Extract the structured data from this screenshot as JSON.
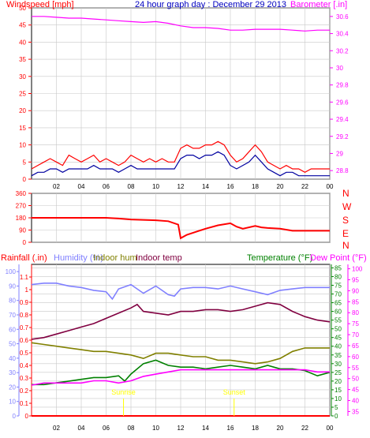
{
  "top_panel": {
    "title": "24 hour graph day : December 29 2013",
    "left_label": "Windspeed [mph]",
    "right_label": "Barometer [.in]"
  },
  "direction_panel": {
    "compass": [
      "N",
      "W",
      "S",
      "E",
      "N"
    ]
  },
  "bottom_panel": {
    "labels": {
      "rainfall": "Rainfall (.in)",
      "humidity": "Humidity (%)",
      "indoor_hum": "Indoor hum",
      "indoor_temp": "Indoor temp",
      "temperature": "Temperature (°F)",
      "dew_point": "Dew Point (°F)"
    },
    "annotations": [
      {
        "text": "Sunrise",
        "hour": 7.4
      },
      {
        "text": "Sunset",
        "hour": 16.3
      }
    ]
  },
  "colors": {
    "red": "#ff0000",
    "blue_title": "#0000c0",
    "magenta": "#ff00ff",
    "gust": "#ff0000",
    "avg_wind": "#0000a0",
    "direction": "#ff0000",
    "humidity": "#8080ff",
    "indoor_hum": "#808000",
    "indoor_temp": "#800040",
    "temperature": "#008000",
    "dew_point": "#ff00ff",
    "rainfall": "#ff0000",
    "axis": "#000000",
    "grid": "#c8c8c8",
    "annotation": "#ffff00"
  },
  "chart_data": [
    {
      "type": "line",
      "x_ticks": [
        "02",
        "04",
        "06",
        "08",
        "10",
        "12",
        "14",
        "16",
        "18",
        "20",
        "22",
        "00"
      ],
      "xlim": [
        0,
        24
      ],
      "y_left": {
        "label": "Windspeed [mph]",
        "ylim": [
          0,
          50
        ],
        "ticks": [
          0,
          5,
          10,
          15,
          20,
          25,
          30,
          35,
          40,
          45,
          50
        ]
      },
      "y_right": {
        "label": "Barometer [.in]",
        "ylim": [
          28.7,
          30.7
        ],
        "ticks": [
          "28.8",
          "29",
          "29.2",
          "29.4",
          "29.6",
          "29.8",
          "30",
          "30.2",
          "30.4",
          "30.6"
        ]
      },
      "series": [
        {
          "name": "Windspeed gust",
          "axis": "left",
          "x": [
            0,
            0.5,
            1,
            1.5,
            2,
            2.5,
            3,
            3.5,
            4,
            4.5,
            5,
            5.5,
            6,
            6.5,
            7,
            7.5,
            8,
            8.5,
            9,
            9.5,
            10,
            10.5,
            11,
            11.5,
            12,
            12.5,
            13,
            13.5,
            14,
            14.5,
            15,
            15.5,
            16,
            16.5,
            17,
            17.5,
            18,
            18.5,
            19,
            19.5,
            20,
            20.5,
            21,
            21.5,
            22,
            22.5,
            23,
            23.5,
            24
          ],
          "y": [
            3,
            4,
            5,
            6,
            5,
            4,
            7,
            6,
            5,
            6,
            7,
            5,
            6,
            5,
            4,
            5,
            7,
            6,
            5,
            6,
            5,
            6,
            5,
            5,
            9,
            10,
            9,
            9,
            10,
            10,
            11,
            10,
            7,
            5,
            6,
            8,
            10,
            8,
            5,
            4,
            3,
            4,
            3,
            3,
            2,
            3,
            3,
            3,
            3
          ]
        },
        {
          "name": "Windspeed average",
          "axis": "left",
          "x": [
            0,
            0.5,
            1,
            1.5,
            2,
            2.5,
            3,
            3.5,
            4,
            4.5,
            5,
            5.5,
            6,
            6.5,
            7,
            7.5,
            8,
            8.5,
            9,
            9.5,
            10,
            10.5,
            11,
            11.5,
            12,
            12.5,
            13,
            13.5,
            14,
            14.5,
            15,
            15.5,
            16,
            16.5,
            17,
            17.5,
            18,
            18.5,
            19,
            19.5,
            20,
            20.5,
            21,
            21.5,
            22,
            22.5,
            23,
            23.5,
            24
          ],
          "y": [
            1,
            2,
            2,
            3,
            3,
            2,
            3,
            3,
            3,
            3,
            4,
            3,
            3,
            3,
            2,
            3,
            4,
            3,
            3,
            3,
            3,
            3,
            3,
            3,
            6,
            7,
            7,
            6,
            7,
            7,
            8,
            7,
            4,
            3,
            4,
            5,
            7,
            5,
            3,
            2,
            1,
            2,
            2,
            1,
            1,
            1,
            1,
            1,
            1
          ]
        },
        {
          "name": "Barometer",
          "axis": "right",
          "x": [
            0,
            1,
            2,
            3,
            4,
            5,
            6,
            7,
            8,
            9,
            10,
            11,
            12,
            13,
            14,
            15,
            16,
            17,
            18,
            19,
            20,
            21,
            22,
            23,
            24
          ],
          "y": [
            30.6,
            30.6,
            30.59,
            30.58,
            30.58,
            30.57,
            30.56,
            30.55,
            30.54,
            30.53,
            30.54,
            30.52,
            30.49,
            30.47,
            30.47,
            30.46,
            30.44,
            30.44,
            30.45,
            30.45,
            30.45,
            30.44,
            30.43,
            30.44,
            30.44
          ]
        }
      ]
    },
    {
      "type": "line",
      "x_ticks": [
        "02",
        "04",
        "06",
        "08",
        "10",
        "12",
        "14",
        "16",
        "18",
        "20",
        "22",
        "00"
      ],
      "xlim": [
        0,
        24
      ],
      "y_left": {
        "label": "",
        "ylim": [
          0,
          360
        ],
        "ticks": [
          0,
          90,
          180,
          270,
          360
        ]
      },
      "series": [
        {
          "name": "Wind direction",
          "axis": "left",
          "x": [
            0,
            6,
            7,
            8,
            9,
            10,
            11,
            11.8,
            12,
            12.5,
            13,
            14,
            15,
            16,
            16.5,
            17,
            18,
            18.5,
            19,
            20,
            21,
            22,
            23,
            24
          ],
          "y": [
            180,
            180,
            175,
            168,
            165,
            162,
            155,
            130,
            30,
            55,
            70,
            100,
            125,
            140,
            115,
            100,
            120,
            110,
            105,
            100,
            85,
            85,
            85,
            85
          ]
        }
      ]
    },
    {
      "type": "line",
      "x_ticks": [
        "02",
        "04",
        "06",
        "08",
        "10",
        "12",
        "14",
        "16",
        "18",
        "20",
        "22",
        "00"
      ],
      "xlim": [
        0,
        24
      ],
      "y_rain": {
        "label": "Rainfall (.in)",
        "ylim": [
          0,
          1.2
        ],
        "ticks": [
          "0",
          "0.1",
          "0.2",
          "0.3",
          "0.4",
          "0.5",
          "0.6",
          "0.7",
          "0.8",
          "0.9",
          "1",
          "1.1"
        ]
      },
      "y_humidity": {
        "label": "Humidity (%)",
        "ylim": [
          0,
          105
        ],
        "ticks": [
          0,
          10,
          20,
          30,
          40,
          50,
          60,
          70,
          80,
          90,
          100
        ]
      },
      "y_temp": {
        "label": "Temperature (°F)",
        "ylim": [
          0,
          87
        ],
        "ticks": [
          0,
          5,
          10,
          15,
          20,
          25,
          30,
          35,
          40,
          45,
          50,
          55,
          60,
          65,
          70,
          75,
          80,
          85
        ]
      },
      "y_dew": {
        "label": "Dew Point (°F)",
        "ylim": [
          33,
          102
        ],
        "ticks": [
          35,
          40,
          45,
          50,
          55,
          60,
          65,
          70,
          75,
          80,
          85,
          90,
          95,
          100
        ]
      },
      "series": [
        {
          "name": "Humidity (%)",
          "axis": "humidity",
          "x": [
            0,
            1,
            2,
            3,
            4,
            5,
            6,
            6.5,
            7,
            8,
            9,
            10,
            11,
            11.5,
            12,
            13,
            14,
            15,
            16,
            17,
            18,
            19,
            20,
            21,
            22,
            23,
            24
          ],
          "y": [
            91,
            92,
            92,
            90,
            89,
            87,
            86,
            81,
            88,
            91,
            85,
            90,
            84,
            83,
            88,
            89,
            89,
            88,
            90,
            88,
            86,
            84,
            87,
            88,
            89,
            89,
            89
          ]
        },
        {
          "name": "Indoor hum",
          "axis": "temp",
          "x": [
            0,
            1,
            2,
            3,
            4,
            5,
            6,
            7,
            8,
            9,
            10,
            11,
            12,
            13,
            14,
            15,
            16,
            17,
            18,
            19,
            20,
            21,
            22,
            23,
            24
          ],
          "y": [
            42,
            41,
            40,
            39,
            38,
            37,
            37,
            36,
            35,
            33,
            36,
            36,
            35,
            34,
            34,
            32,
            32,
            31,
            30,
            31,
            33,
            37,
            39,
            39,
            39
          ]
        },
        {
          "name": "Indoor temp",
          "axis": "temp",
          "x": [
            0,
            1,
            2,
            3,
            4,
            5,
            6,
            7,
            8,
            8.5,
            9,
            10,
            11,
            12,
            13,
            14,
            15,
            16,
            17,
            18,
            19,
            20,
            21,
            22,
            23,
            24
          ],
          "y": [
            44,
            45,
            47,
            49,
            51,
            53,
            56,
            59,
            62,
            64,
            60,
            59,
            58,
            60,
            60,
            61,
            61,
            60,
            61,
            63,
            65,
            64,
            60,
            57,
            55,
            54
          ]
        },
        {
          "name": "Temperature (°F)",
          "axis": "temp",
          "x": [
            0,
            1,
            2,
            3,
            4,
            5,
            6,
            7,
            7.5,
            8,
            9,
            10,
            11,
            12,
            13,
            14,
            15,
            16,
            17,
            18,
            19,
            20,
            21,
            22,
            23,
            24
          ],
          "y": [
            18,
            18,
            19,
            20,
            21,
            22,
            22,
            23,
            20,
            24,
            30,
            32,
            29,
            28,
            28,
            27,
            28,
            29,
            28,
            27,
            29,
            27,
            27,
            26,
            23,
            25
          ]
        },
        {
          "name": "Dew Point (°F)",
          "axis": "dew",
          "x": [
            0,
            1,
            2,
            3,
            4,
            5,
            6,
            7,
            8,
            9,
            10,
            11,
            12,
            13,
            14,
            15,
            16,
            17,
            18,
            19,
            20,
            21,
            22,
            23,
            24
          ],
          "y": [
            47,
            48,
            48,
            48,
            48,
            49,
            49,
            48,
            49,
            51,
            52,
            53,
            54,
            54,
            54,
            54,
            54,
            54,
            54,
            54,
            54,
            54,
            54,
            53,
            53
          ]
        },
        {
          "name": "Rainfall (.in)",
          "axis": "rain",
          "x": [
            0,
            24
          ],
          "y": [
            0,
            0
          ]
        }
      ]
    }
  ]
}
